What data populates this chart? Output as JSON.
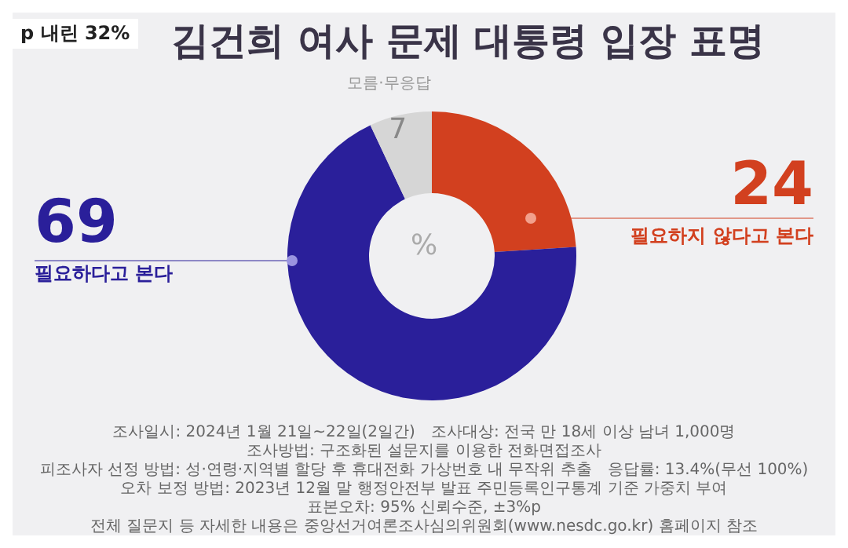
{
  "chart_data": {
    "type": "donut",
    "title": "김건희 여사 문제 대통령 입장 표명",
    "categories": [
      "필요하지 않다고 본다",
      "필요하다고 본다",
      "모름·무응답"
    ],
    "values": [
      24,
      69,
      7
    ],
    "colors": [
      "#d2401f",
      "#2a1f9a",
      "#d6d6d6"
    ],
    "data_labels": true,
    "annotations": [
      "p 내린 32%",
      "%",
      "조사일시: 2024년 1월 21일~22일(2일간)",
      "조사대상: 전국 만 18세 이상 남녀 1,000명",
      "조사방법: 구조화된 설문지를 이용한 전화면접조사",
      "피조사자 선정 방법: 성·연령·지역별 할당 후 휴대전화 가상번호 내 무작위 추출",
      "응답률: 13.4%(무선 100%)",
      "오차 보정 방법: 2023년 12월 말 행정안전부 발표 주민등록인구통계 기준 가중치 부여",
      "표본오차: 95% 신뢰수준, ±3%p",
      "전체 질문지 등 자세한 내용은 중앙선거여론조사심의위원회(www.nesdc.go.kr) 홈페이지 참조"
    ]
  }
}
